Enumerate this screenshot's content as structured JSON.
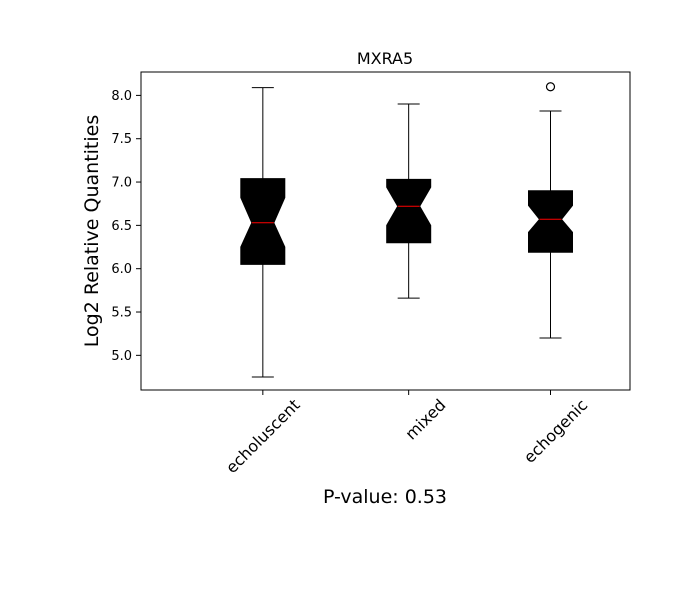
{
  "chart_data": {
    "type": "box",
    "title": "MXRA5",
    "xlabel": "P-value: 0.53",
    "ylabel": "Log2 Relative Quantities",
    "ylim": [
      4.6,
      8.27
    ],
    "yticks": [
      "5.0",
      "5.5",
      "6.0",
      "6.5",
      "7.0",
      "7.5",
      "8.0"
    ],
    "notched": true,
    "grid": false,
    "colors": {
      "box": "#000000",
      "median": "#ff0000",
      "whisker": "#000000"
    },
    "categories": [
      "echoluscent",
      "mixed",
      "echogenic"
    ],
    "boxes": [
      {
        "name": "echoluscent",
        "whisker_low": 4.75,
        "q1": 6.05,
        "median": 6.53,
        "q3": 7.04,
        "whisker_high": 8.09,
        "notch_low": 6.25,
        "notch_high": 6.82,
        "outliers": []
      },
      {
        "name": "mixed",
        "whisker_low": 5.66,
        "q1": 6.3,
        "median": 6.72,
        "q3": 7.03,
        "whisker_high": 7.9,
        "notch_low": 6.5,
        "notch_high": 6.94,
        "outliers": []
      },
      {
        "name": "echogenic",
        "whisker_low": 5.2,
        "q1": 6.19,
        "median": 6.57,
        "q3": 6.9,
        "whisker_high": 7.82,
        "notch_low": 6.42,
        "notch_high": 6.73,
        "outliers": [
          8.1
        ]
      }
    ]
  }
}
